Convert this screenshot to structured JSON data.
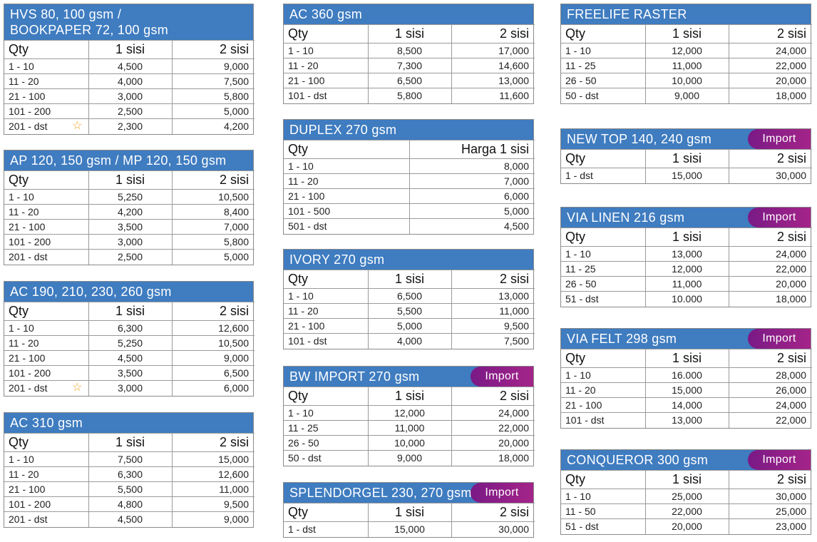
{
  "colors": {
    "header_blue": "#3f7cc0",
    "badge_purple": "#8e1f88",
    "star": "#f0a020"
  },
  "tables": [
    {
      "id": "hvs",
      "title": "HVS 80, 100 gsm /\nBOOKPAPER 72, 100 gsm",
      "badge": "",
      "columns": [
        "Qty",
        "1 sisi",
        "2 sisi"
      ],
      "rows": [
        [
          "1 - 10",
          "4,500",
          "9,000"
        ],
        [
          "11 - 20",
          "4,000",
          "7,500"
        ],
        [
          "21 - 100",
          "3,000",
          "5,800"
        ],
        [
          "101 - 200",
          "2,500",
          "5,000"
        ],
        [
          "201 - dst",
          "2,300",
          "4,200"
        ]
      ],
      "star_row": 4
    },
    {
      "id": "ap",
      "title": "AP 120, 150 gsm / MP 120, 150 gsm",
      "badge": "",
      "columns": [
        "Qty",
        "1 sisi",
        "2 sisi"
      ],
      "rows": [
        [
          "1 - 10",
          "5,250",
          "10,500"
        ],
        [
          "11 - 20",
          "4,200",
          "8,400"
        ],
        [
          "21 - 100",
          "3,500",
          "7,000"
        ],
        [
          "101 - 200",
          "3,000",
          "5,800"
        ],
        [
          "201 - dst",
          "2,500",
          "5,000"
        ]
      ]
    },
    {
      "id": "ac190",
      "title": "AC 190, 210, 230, 260 gsm",
      "badge": "",
      "columns": [
        "Qty",
        "1 sisi",
        "2 sisi"
      ],
      "rows": [
        [
          "1 - 10",
          "6,300",
          "12,600"
        ],
        [
          "11 - 20",
          "5,250",
          "10,500"
        ],
        [
          "21 - 100",
          "4,500",
          "9,000"
        ],
        [
          "101 - 200",
          "3,500",
          "6,500"
        ],
        [
          "201 - dst",
          "3,000",
          "6,000"
        ]
      ],
      "star_row": 4
    },
    {
      "id": "ac310",
      "title": "AC 310 gsm",
      "badge": "",
      "columns": [
        "Qty",
        "1 sisi",
        "2 sisi"
      ],
      "rows": [
        [
          "1 - 10",
          "7,500",
          "15,000"
        ],
        [
          "11 - 20",
          "6,300",
          "12,600"
        ],
        [
          "21 - 100",
          "5,500",
          "11,000"
        ],
        [
          "101 - 200",
          "4,800",
          "9,500"
        ],
        [
          "201 - dst",
          "4,500",
          "9,000"
        ]
      ]
    },
    {
      "id": "ac360",
      "title": "AC 360 gsm",
      "badge": "",
      "columns": [
        "Qty",
        "1 sisi",
        "2 sisi"
      ],
      "rows": [
        [
          "1 - 10",
          "8,500",
          "17,000"
        ],
        [
          "11 - 20",
          "7,300",
          "14,600"
        ],
        [
          "21 - 100",
          "6,500",
          "13,000"
        ],
        [
          "101 - dst",
          "5,800",
          "11,600"
        ]
      ]
    },
    {
      "id": "duplex",
      "title": "DUPLEX 270 gsm",
      "badge": "",
      "columns": [
        "Qty",
        "Harga 1 sisi"
      ],
      "rows": [
        [
          "1 - 10",
          "8,000"
        ],
        [
          "11 - 20",
          "7,000"
        ],
        [
          "21 - 100",
          "6,000"
        ],
        [
          "101 - 500",
          "5,000"
        ],
        [
          "501 - dst",
          "4,500"
        ]
      ]
    },
    {
      "id": "ivory",
      "title": "IVORY 270 gsm",
      "badge": "",
      "columns": [
        "Qty",
        "1 sisi",
        "2 sisi"
      ],
      "rows": [
        [
          "1 - 10",
          "6,500",
          "13,000"
        ],
        [
          "11 - 20",
          "5,500",
          "11,000"
        ],
        [
          "21 - 100",
          "5,000",
          "9,500"
        ],
        [
          "101 - dst",
          "4,000",
          "7,500"
        ]
      ]
    },
    {
      "id": "bw",
      "title": "BW IMPORT 270 gsm",
      "badge": "Import",
      "columns": [
        "Qty",
        "1 sisi",
        "2 sisi"
      ],
      "rows": [
        [
          "1 - 10",
          "12,000",
          "24,000"
        ],
        [
          "11 - 25",
          "11,000",
          "22,000"
        ],
        [
          "26 - 50",
          "10,000",
          "20,000"
        ],
        [
          "50 - dst",
          "9,000",
          "18,000"
        ]
      ]
    },
    {
      "id": "splendorgel",
      "title": "SPLENDORGEL 230, 270 gsm",
      "badge": "Import",
      "columns": [
        "Qty",
        "1 sisi",
        "2 sisi"
      ],
      "rows": [
        [
          "1 - dst",
          "15,000",
          "30,000"
        ]
      ]
    },
    {
      "id": "freelife",
      "title": "FREELIFE RASTER",
      "badge": "",
      "columns": [
        "Qty",
        "1 sisi",
        "2 sisi"
      ],
      "rows": [
        [
          "1 - 10",
          "12,000",
          "24,000"
        ],
        [
          "11 - 25",
          "11,000",
          "22,000"
        ],
        [
          "26 - 50",
          "10,000",
          "20,000"
        ],
        [
          "50 - dst",
          "9,000",
          "18,000"
        ]
      ]
    },
    {
      "id": "newtop",
      "title": "NEW TOP 140, 240 gsm",
      "badge": "Import",
      "columns": [
        "Qty",
        "1 sisi",
        "2 sisi"
      ],
      "rows": [
        [
          "1 - dst",
          "15,000",
          "30,000"
        ]
      ]
    },
    {
      "id": "vialinen",
      "title": "VIA LINEN 216 gsm",
      "badge": "Import",
      "columns": [
        "Qty",
        "1 sisi",
        "2 sisi"
      ],
      "rows": [
        [
          "1 - 10",
          "13,000",
          "24,000"
        ],
        [
          "11 - 25",
          "12,000",
          "22,000"
        ],
        [
          "26 - 50",
          "11,000",
          "20,000"
        ],
        [
          "51 - dst",
          "10.000",
          "18,000"
        ]
      ]
    },
    {
      "id": "viafelt",
      "title": "VIA FELT 298 gsm",
      "badge": "Import",
      "columns": [
        "Qty",
        "1 sisi",
        "2 sisi"
      ],
      "rows": [
        [
          "1 - 10",
          "16.000",
          "28,000"
        ],
        [
          "11 - 20",
          "15,000",
          "26,000"
        ],
        [
          "21 - 100",
          "14,000",
          "24,000"
        ],
        [
          "101 - dst",
          "13,000",
          "22,000"
        ]
      ]
    },
    {
      "id": "conqueror",
      "title": "CONQUEROR 300 gsm",
      "badge": "Import",
      "columns": [
        "Qty",
        "1 sisi",
        "2 sisi"
      ],
      "rows": [
        [
          "1 - 10",
          "25,000",
          "30,000"
        ],
        [
          "11 - 50",
          "22,000",
          "25,000"
        ],
        [
          "51 - dst",
          "20,000",
          "23,000"
        ]
      ]
    }
  ]
}
